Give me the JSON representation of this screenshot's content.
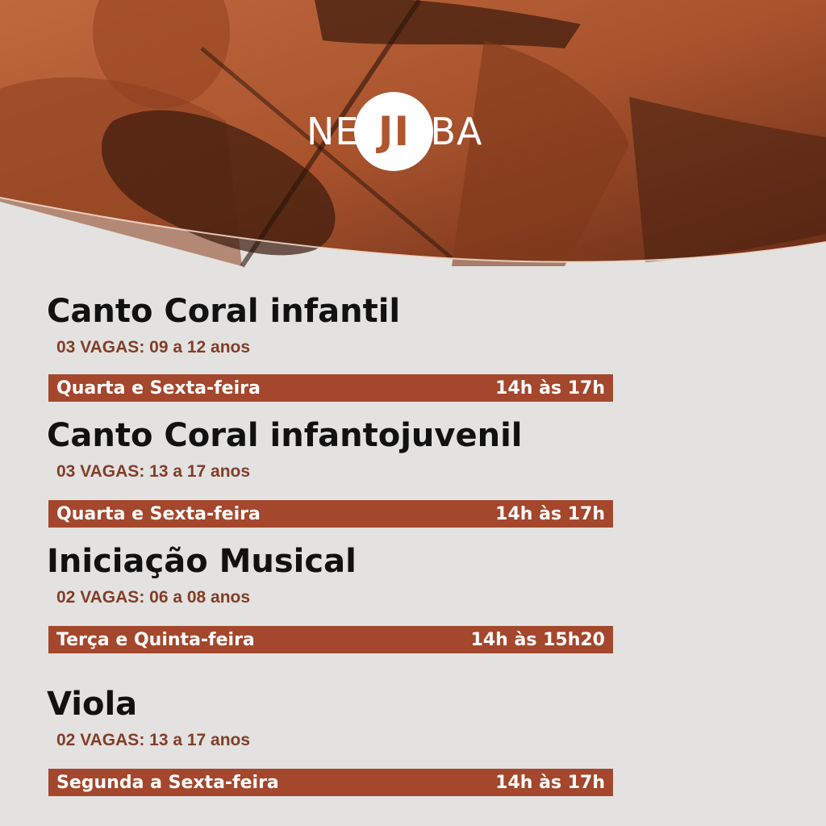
{
  "brand": {
    "logo_left": "NE",
    "logo_center": "JI",
    "logo_right": "BA"
  },
  "colors": {
    "header": "#b0572f",
    "bar": "#a4472c",
    "vagas_text": "#823d26",
    "background": "#e3e2e1"
  },
  "courses": [
    {
      "title": "Canto Coral infantil",
      "vagas": "03 VAGAS: 09 a 12 anos",
      "days": "Quarta e Sexta-feira",
      "hours": "14h às 17h"
    },
    {
      "title": "Canto Coral infantojuvenil",
      "vagas": "03 VAGAS: 13 a 17 anos",
      "days": "Quarta e Sexta-feira",
      "hours": "14h às 17h"
    },
    {
      "title": "Iniciação Musical",
      "vagas": "02 VAGAS: 06 a 08 anos",
      "days": "Terça e Quinta-feira",
      "hours": "14h às 15h20"
    },
    {
      "title": "Viola",
      "vagas": "02 VAGAS: 13 a 17 anos",
      "days": "Segunda a Sexta-feira",
      "hours": "14h às 17h"
    }
  ]
}
